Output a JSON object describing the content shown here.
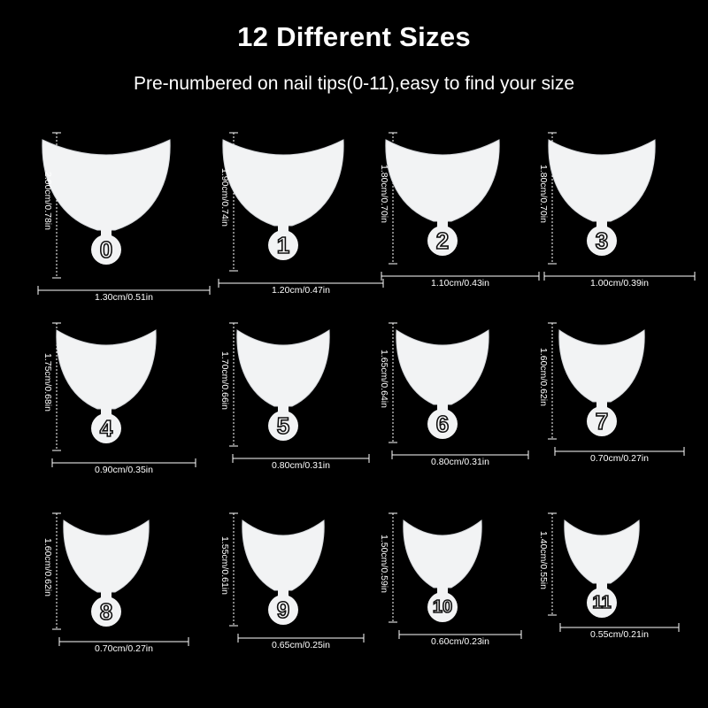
{
  "header": {
    "title": "12 Different Sizes",
    "subtitle": "Pre-numbered on nail tips(0-11),easy to find your size"
  },
  "tips": [
    {
      "number": "0",
      "height": "2.00cm/0.78in",
      "width": "1.30cm/0.51in",
      "height_cm": 2.0,
      "width_cm": 1.3
    },
    {
      "number": "1",
      "height": "1.90cm/0.74in",
      "width": "1.20cm/0.47in",
      "height_cm": 1.9,
      "width_cm": 1.2
    },
    {
      "number": "2",
      "height": "1.80cm/0.70in",
      "width": "1.10cm/0.43in",
      "height_cm": 1.8,
      "width_cm": 1.1
    },
    {
      "number": "3",
      "height": "1.80cm/0.70in",
      "width": "1.00cm/0.39in",
      "height_cm": 1.8,
      "width_cm": 1.0
    },
    {
      "number": "4",
      "height": "1.75cm/0.68in",
      "width": "0.90cm/0.35in",
      "height_cm": 1.75,
      "width_cm": 0.9
    },
    {
      "number": "5",
      "height": "1.70cm/0.66in",
      "width": "0.80cm/0.31in",
      "height_cm": 1.7,
      "width_cm": 0.8
    },
    {
      "number": "6",
      "height": "1.65cm/0.64in",
      "width": "0.80cm/0.31in",
      "height_cm": 1.65,
      "width_cm": 0.8
    },
    {
      "number": "7",
      "height": "1.60cm/0.62in",
      "width": "0.70cm/0.27in",
      "height_cm": 1.6,
      "width_cm": 0.7
    },
    {
      "number": "8",
      "height": "1.60cm/0.62in",
      "width": "0.70cm/0.27in",
      "height_cm": 1.6,
      "width_cm": 0.7
    },
    {
      "number": "9",
      "height": "1.55cm/0.61in",
      "width": "0.65cm/0.25in",
      "height_cm": 1.55,
      "width_cm": 0.65
    },
    {
      "number": "10",
      "height": "1.50cm/0.59in",
      "width": "0.60cm/0.23in",
      "height_cm": 1.5,
      "width_cm": 0.6
    },
    {
      "number": "11",
      "height": "1.40cm/0.55in",
      "width": "0.55cm/0.21in",
      "height_cm": 1.4,
      "width_cm": 0.55
    }
  ],
  "colors": {
    "background": "#000000",
    "text": "#ffffff",
    "tip": "#f2f3f4",
    "tip_shadow": "#d3d6da"
  }
}
